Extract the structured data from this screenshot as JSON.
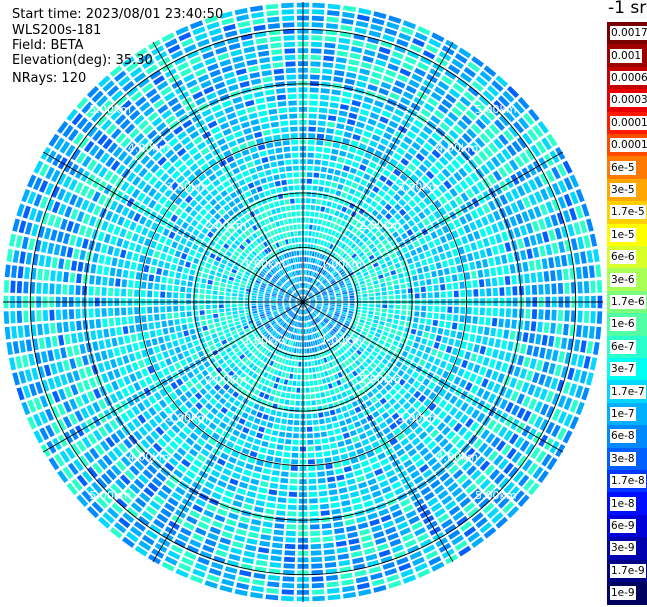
{
  "header": {
    "start_time": "Start time: 2023/08/01 23:40:50",
    "instrument": "WLS200s-181",
    "field": "Field: BETA",
    "elevation": "Elevation(deg): 35.30",
    "nrays": "NRays: 120"
  },
  "colorbar": {
    "unit_label": "-1 sr",
    "entries": [
      {
        "label": "0.0017",
        "color": "#7a0000"
      },
      {
        "label": "0.001",
        "color": "#9e0000"
      },
      {
        "label": "0.0006",
        "color": "#c40000"
      },
      {
        "label": "0.0003",
        "color": "#e80000"
      },
      {
        "label": "0.00017",
        "color": "#ff1a00"
      },
      {
        "label": "0.0001",
        "color": "#ff4d00"
      },
      {
        "label": "6e-5",
        "color": "#ff7a00"
      },
      {
        "label": "3e-5",
        "color": "#ffa600"
      },
      {
        "label": "1.7e-5",
        "color": "#ffd000"
      },
      {
        "label": "1e-5",
        "color": "#ffff00"
      },
      {
        "label": "6e-6",
        "color": "#d8ff2a"
      },
      {
        "label": "3e-6",
        "color": "#a8ff56"
      },
      {
        "label": "1.7e-6",
        "color": "#7cff7c"
      },
      {
        "label": "1e-6",
        "color": "#52ffa4"
      },
      {
        "label": "6e-7",
        "color": "#2affce"
      },
      {
        "label": "3e-7",
        "color": "#00fff0"
      },
      {
        "label": "1.7e-7",
        "color": "#00d8ff"
      },
      {
        "label": "1e-7",
        "color": "#00b0ff"
      },
      {
        "label": "6e-8",
        "color": "#0088ff"
      },
      {
        "label": "3e-8",
        "color": "#0060ff"
      },
      {
        "label": "1.7e-8",
        "color": "#0036ff"
      },
      {
        "label": "1e-8",
        "color": "#000eff"
      },
      {
        "label": "6e-9",
        "color": "#0000d8"
      },
      {
        "label": "3e-9",
        "color": "#0000ae"
      },
      {
        "label": "1.7e-9",
        "color": "#000086"
      },
      {
        "label": "1e-9",
        "color": "#00005e"
      }
    ]
  },
  "chart_data": {
    "type": "heatmap",
    "projection": "polar (PPI)",
    "title": "",
    "field": "BETA",
    "nrays": 120,
    "max_range_km": 5.5,
    "range_rings_km": [
      1.0,
      2.0,
      3.0,
      4.0,
      5.0
    ],
    "ring_labels": [
      "1.00km",
      "2.00km",
      "3.00km",
      "4.00km",
      "5.00km"
    ],
    "spoke_azimuths_deg": [
      0,
      30,
      60,
      90,
      120,
      150,
      180,
      210,
      240,
      270,
      300,
      330
    ],
    "grid": true,
    "dominant_values_by_range": [
      {
        "range_km": [
          0.0,
          1.0
        ],
        "typical": "1e-7",
        "colors": [
          "#0088ff",
          "#00b0ff",
          "#00d8ff"
        ]
      },
      {
        "range_km": [
          1.0,
          2.0
        ],
        "typical": "3e-7",
        "colors": [
          "#00fff0",
          "#2affce",
          "#00d8ff"
        ]
      },
      {
        "range_km": [
          2.0,
          4.0
        ],
        "typical": "1.7e-7",
        "colors": [
          "#00d8ff",
          "#00b0ff",
          "#00fff0"
        ]
      },
      {
        "range_km": [
          4.0,
          5.5
        ],
        "typical": "1e-7",
        "colors": [
          "#00b0ff",
          "#0088ff",
          "#00d8ff",
          "#2affce"
        ]
      }
    ]
  }
}
